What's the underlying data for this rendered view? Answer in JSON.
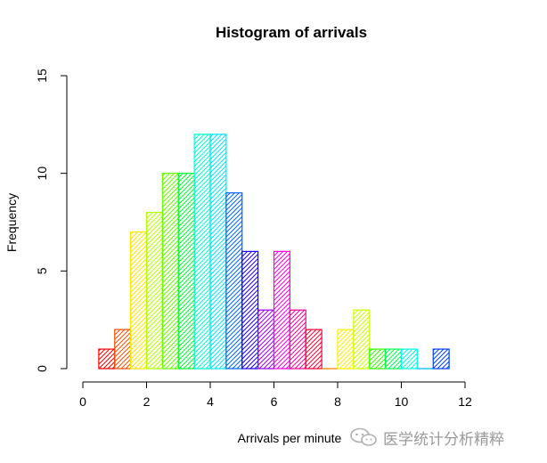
{
  "chart_data": {
    "type": "bar",
    "title": "Histogram of arrivals",
    "xlabel": "Arrivals per minute",
    "ylabel": "Frequency",
    "xlim": [
      0,
      12
    ],
    "ylim": [
      0,
      15
    ],
    "xticks": [
      0,
      2,
      4,
      6,
      8,
      10,
      12
    ],
    "yticks": [
      0,
      5,
      10,
      15
    ],
    "grid": false,
    "fill": "diagonal hatching, rainbow colors",
    "bins": [
      {
        "x0": 0.5,
        "x1": 1.0,
        "value": 1,
        "color": "#ff0000"
      },
      {
        "x0": 1.0,
        "x1": 1.5,
        "value": 2,
        "color": "#ff4d00"
      },
      {
        "x0": 1.5,
        "x1": 2.0,
        "value": 7,
        "color": "#ffe600"
      },
      {
        "x0": 2.0,
        "x1": 2.5,
        "value": 8,
        "color": "#b3ff00"
      },
      {
        "x0": 2.5,
        "x1": 3.0,
        "value": 10,
        "color": "#66ff00"
      },
      {
        "x0": 3.0,
        "x1": 3.5,
        "value": 10,
        "color": "#00ff33"
      },
      {
        "x0": 3.5,
        "x1": 4.0,
        "value": 12,
        "color": "#00ffcc"
      },
      {
        "x0": 4.0,
        "x1": 4.5,
        "value": 12,
        "color": "#00e6ff"
      },
      {
        "x0": 4.5,
        "x1": 5.0,
        "value": 9,
        "color": "#0066ff"
      },
      {
        "x0": 5.0,
        "x1": 5.5,
        "value": 6,
        "color": "#1a00ff"
      },
      {
        "x0": 5.5,
        "x1": 6.0,
        "value": 3,
        "color": "#9900ff"
      },
      {
        "x0": 6.0,
        "x1": 6.5,
        "value": 6,
        "color": "#ff00e6"
      },
      {
        "x0": 6.5,
        "x1": 7.0,
        "value": 3,
        "color": "#ff0099"
      },
      {
        "x0": 7.0,
        "x1": 7.5,
        "value": 2,
        "color": "#ff0033"
      },
      {
        "x0": 7.5,
        "x1": 8.0,
        "value": 0,
        "color": "#ff8000"
      },
      {
        "x0": 8.0,
        "x1": 8.5,
        "value": 2,
        "color": "#ffee00"
      },
      {
        "x0": 8.5,
        "x1": 9.0,
        "value": 3,
        "color": "#ccff00"
      },
      {
        "x0": 9.0,
        "x1": 9.5,
        "value": 1,
        "color": "#33ff00"
      },
      {
        "x0": 9.5,
        "x1": 10.0,
        "value": 1,
        "color": "#00ff4d"
      },
      {
        "x0": 10.0,
        "x1": 10.5,
        "value": 1,
        "color": "#00ffe6"
      },
      {
        "x0": 10.5,
        "x1": 11.0,
        "value": 0,
        "color": "#00b3ff"
      },
      {
        "x0": 11.0,
        "x1": 11.5,
        "value": 1,
        "color": "#0040ff"
      }
    ]
  },
  "watermark": {
    "text": "医学统计分析精粹",
    "icon": "wechat-icon"
  }
}
